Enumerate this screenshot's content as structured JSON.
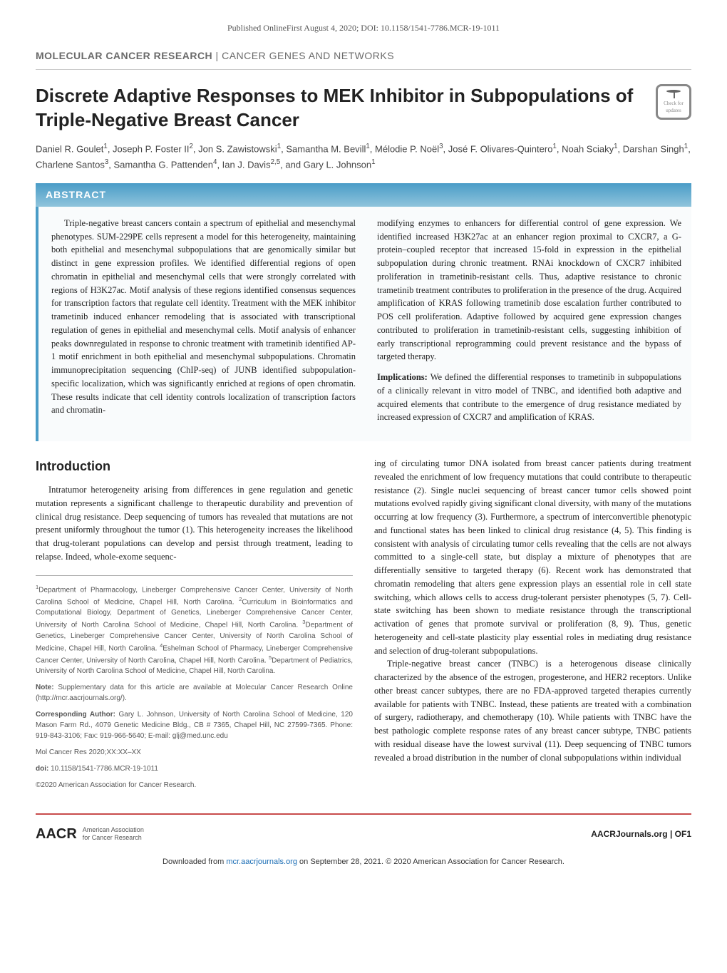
{
  "header_meta": "Published OnlineFirst August 4, 2020; DOI: 10.1158/1541-7786.MCR-19-1011",
  "section_header_bold": "MOLECULAR CANCER RESEARCH",
  "section_header_light": " | CANCER GENES AND NETWORKS",
  "title": "Discrete Adaptive Responses to MEK Inhibitor in Subpopulations of Triple-Negative Breast Cancer",
  "badge_text": "Check for updates",
  "authors_html": "Daniel R. Goulet<sup>1</sup>, Joseph P. Foster II<sup>2</sup>, Jon S. Zawistowski<sup>1</sup>, Samantha M. Bevill<sup>1</sup>, Mélodie P. Noël<sup>3</sup>, José F. Olivares-Quintero<sup>1</sup>, Noah Sciaky<sup>1</sup>, Darshan Singh<sup>1</sup>, Charlene Santos<sup>3</sup>, Samantha G. Pattenden<sup>4</sup>, Ian J. Davis<sup>2,5</sup>, and Gary L. Johnson<sup>1</sup>",
  "abstract_header": "ABSTRACT",
  "abstract_left": "Triple-negative breast cancers contain a spectrum of epithelial and mesenchymal phenotypes. SUM-229PE cells represent a model for this heterogeneity, maintaining both epithelial and mesenchymal subpopulations that are genomically similar but distinct in gene expression profiles. We identified differential regions of open chromatin in epithelial and mesenchymal cells that were strongly correlated with regions of H3K27ac. Motif analysis of these regions identified consensus sequences for transcription factors that regulate cell identity. Treatment with the MEK inhibitor trametinib induced enhancer remodeling that is associated with transcriptional regulation of genes in epithelial and mesenchymal cells. Motif analysis of enhancer peaks downregulated in response to chronic treatment with trametinib identified AP-1 motif enrichment in both epithelial and mesenchymal subpopulations. Chromatin immunoprecipitation sequencing (ChIP-seq) of JUNB identified subpopulation-specific localization, which was significantly enriched at regions of open chromatin. These results indicate that cell identity controls localization of transcription factors and chromatin-",
  "abstract_right_p1": "modifying enzymes to enhancers for differential control of gene expression. We identified increased H3K27ac at an enhancer region proximal to CXCR7, a G-protein–coupled receptor that increased 15-fold in expression in the epithelial subpopulation during chronic treatment. RNAi knockdown of CXCR7 inhibited proliferation in trametinib-resistant cells. Thus, adaptive resistance to chronic trametinib treatment contributes to proliferation in the presence of the drug. Acquired amplification of KRAS following trametinib dose escalation further contributed to POS cell proliferation. Adaptive followed by acquired gene expression changes contributed to proliferation in trametinib-resistant cells, suggesting inhibition of early transcriptional reprogramming could prevent resistance and the bypass of targeted therapy.",
  "implications_label": "Implications:",
  "implications_text": " We defined the differential responses to trametinib in subpopulations of a clinically relevant in vitro model of TNBC, and identified both adaptive and acquired elements that contribute to the emergence of drug resistance mediated by increased expression of CXCR7 and amplification of KRAS.",
  "intro_header": "Introduction",
  "intro_left": "Intratumor heterogeneity arising from differences in gene regulation and genetic mutation represents a significant challenge to therapeutic durability and prevention of clinical drug resistance. Deep sequencing of tumors has revealed that mutations are not present uniformly throughout the tumor (1). This heterogeneity increases the likelihood that drug-tolerant populations can develop and persist through treatment, leading to relapse. Indeed, whole-exome sequenc-",
  "intro_right_p1": "ing of circulating tumor DNA isolated from breast cancer patients during treatment revealed the enrichment of low frequency mutations that could contribute to therapeutic resistance (2). Single nuclei sequencing of breast cancer tumor cells showed point mutations evolved rapidly giving significant clonal diversity, with many of the mutations occurring at low frequency (3). Furthermore, a spectrum of interconvertible phenotypic and functional states has been linked to clinical drug resistance (4, 5). This finding is consistent with analysis of circulating tumor cells revealing that the cells are not always committed to a single-cell state, but display a mixture of phenotypes that are differentially sensitive to targeted therapy (6). Recent work has demonstrated that chromatin remodeling that alters gene expression plays an essential role in cell state switching, which allows cells to access drug-tolerant persister phenotypes (5, 7). Cell-state switching has been shown to mediate resistance through the transcriptional activation of genes that promote survival or proliferation (8, 9). Thus, genetic heterogeneity and cell-state plasticity play essential roles in mediating drug resistance and selection of drug-tolerant subpopulations.",
  "intro_right_p2": "Triple-negative breast cancer (TNBC) is a heterogenous disease clinically characterized by the absence of the estrogen, progesterone, and HER2 receptors. Unlike other breast cancer subtypes, there are no FDA-approved targeted therapies currently available for patients with TNBC. Instead, these patients are treated with a combination of surgery, radiotherapy, and chemotherapy (10). While patients with TNBC have the best pathologic complete response rates of any breast cancer subtype, TNBC patients with residual disease have the lowest survival (11). Deep sequencing of TNBC tumors revealed a broad distribution in the number of clonal subpopulations within individual",
  "affil_1_html": "<sup>1</sup>Department of Pharmacology, Lineberger Comprehensive Cancer Center, University of North Carolina School of Medicine, Chapel Hill, North Carolina. <sup>2</sup>Curriculum in Bioinformatics and Computational Biology, Department of Genetics, Lineberger Comprehensive Cancer Center, University of North Carolina School of Medicine, Chapel Hill, North Carolina. <sup>3</sup>Department of Genetics, Lineberger Comprehensive Cancer Center, University of North Carolina School of Medicine, Chapel Hill, North Carolina. <sup>4</sup>Eshelman School of Pharmacy, Lineberger Comprehensive Cancer Center, University of North Carolina, Chapel Hill, North Carolina. <sup>5</sup>Department of Pediatrics, University of North Carolina School of Medicine, Chapel Hill, North Carolina.",
  "note_html": "<b>Note:</b> Supplementary data for this article are available at Molecular Cancer Research Online (http://mcr.aacrjournals.org/).",
  "corresponding_html": "<b>Corresponding Author:</b> Gary L. Johnson, University of North Carolina School of Medicine, 120 Mason Farm Rd., 4079 Genetic Medicine Bldg., CB # 7365, Chapel Hill, NC 27599-7365. Phone: 919-843-3106; Fax: 919-966-5640; E-mail: glj@med.unc.edu",
  "citation": "Mol Cancer Res 2020;XX:XX–XX",
  "doi_html": "<b>doi:</b> 10.1158/1541-7786.MCR-19-1011",
  "copyright": "©2020 American Association for Cancer Research.",
  "logo_text": "AACR",
  "logo_sub1": "American Association",
  "logo_sub2": "for Cancer Research",
  "footer_right": "AACRJournals.org | OF1",
  "download_html": "Downloaded from <a>mcr.aacrjournals.org</a> on September 28, 2021. © 2020 American Association for Cancer Research."
}
